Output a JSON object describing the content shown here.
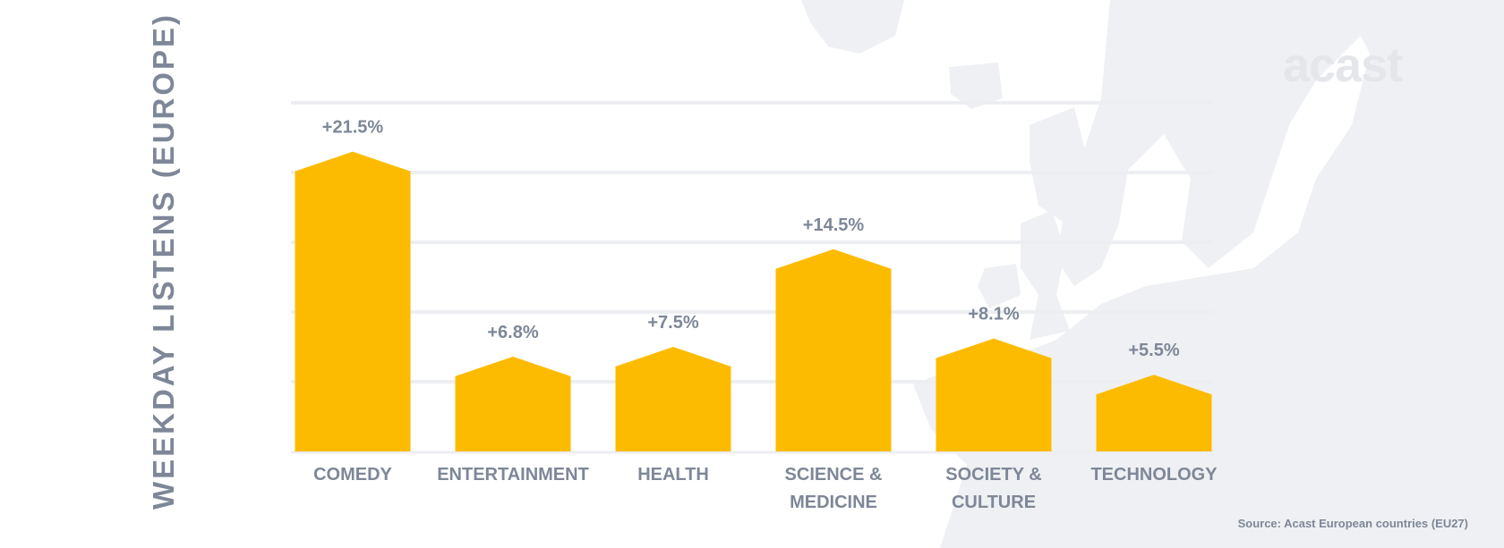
{
  "chart_data": {
    "type": "bar",
    "categories": [
      "COMEDY",
      "ENTERTAINMENT",
      "HEALTH",
      "SCIENCE & MEDICINE",
      "SOCIETY & CULTURE",
      "TECHNOLOGY"
    ],
    "category_lines": [
      [
        "COMEDY"
      ],
      [
        "ENTERTAINMENT"
      ],
      [
        "HEALTH"
      ],
      [
        "SCIENCE &",
        "MEDICINE"
      ],
      [
        "SOCIETY &",
        "CULTURE"
      ],
      [
        "TECHNOLOGY"
      ]
    ],
    "values": [
      21.5,
      6.8,
      7.5,
      14.5,
      8.1,
      5.5
    ],
    "data_labels": [
      "+21.5%",
      "+6.8%",
      "+7.5%",
      "+14.5%",
      "+8.1%",
      "+5.5%"
    ],
    "ylabel": "WEEKDAY LISTENS (EUROPE)",
    "xlabel": "",
    "ylim": [
      0,
      25
    ],
    "grid": true,
    "bar_color": "#fdbb00",
    "label_color": "#7e8798",
    "grid_color": "#eceef1"
  },
  "logo": "acast",
  "source": "Source: Acast European countries (EU27)"
}
